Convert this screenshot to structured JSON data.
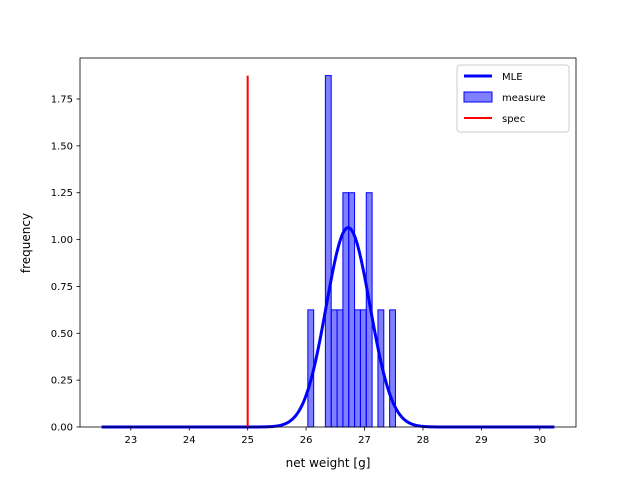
{
  "chart_data": {
    "type": "bar",
    "xlabel": "net weight [g]",
    "ylabel": "frequency",
    "xlim": [
      22.13,
      30.62
    ],
    "ylim": [
      0,
      1.96875
    ],
    "xticks": [
      {
        "value": 23,
        "label": "23"
      },
      {
        "value": 24,
        "label": "24"
      },
      {
        "value": 25,
        "label": "25"
      },
      {
        "value": 26,
        "label": "26"
      },
      {
        "value": 27,
        "label": "27"
      },
      {
        "value": 28,
        "label": "28"
      },
      {
        "value": 29,
        "label": "29"
      },
      {
        "value": 30,
        "label": "30"
      }
    ],
    "yticks": [
      {
        "value": 0.0,
        "label": "0.00"
      },
      {
        "value": 0.25,
        "label": "0.25"
      },
      {
        "value": 0.5,
        "label": "0.50"
      },
      {
        "value": 0.75,
        "label": "0.75"
      },
      {
        "value": 1.0,
        "label": "1.00"
      },
      {
        "value": 1.25,
        "label": "1.25"
      },
      {
        "value": 1.5,
        "label": "1.50"
      },
      {
        "value": 1.75,
        "label": "1.75"
      }
    ],
    "histogram": {
      "name": "measure",
      "color": "#0000ff",
      "bins": [
        {
          "x0": 26.03,
          "x1": 26.13,
          "value": 0.625
        },
        {
          "x0": 26.13,
          "x1": 26.23,
          "value": 0.0
        },
        {
          "x0": 26.23,
          "x1": 26.33,
          "value": 0.0
        },
        {
          "x0": 26.33,
          "x1": 26.43,
          "value": 1.875
        },
        {
          "x0": 26.43,
          "x1": 26.53,
          "value": 0.625
        },
        {
          "x0": 26.53,
          "x1": 26.63,
          "value": 0.625
        },
        {
          "x0": 26.63,
          "x1": 26.73,
          "value": 1.25
        },
        {
          "x0": 26.73,
          "x1": 26.83,
          "value": 1.25
        },
        {
          "x0": 26.83,
          "x1": 26.93,
          "value": 0.625
        },
        {
          "x0": 26.93,
          "x1": 27.03,
          "value": 0.625
        },
        {
          "x0": 27.03,
          "x1": 27.13,
          "value": 1.25
        },
        {
          "x0": 27.13,
          "x1": 27.23,
          "value": 0.0
        },
        {
          "x0": 27.23,
          "x1": 27.33,
          "value": 0.625
        },
        {
          "x0": 27.33,
          "x1": 27.43,
          "value": 0.0
        },
        {
          "x0": 27.43,
          "x1": 27.53,
          "value": 0.625
        }
      ]
    },
    "mle_curve": {
      "name": "MLE",
      "color": "#0000ff",
      "distribution": "normal",
      "mean": 26.72,
      "std": 0.375,
      "x_range": [
        22.5,
        30.25
      ]
    },
    "spec_line": {
      "name": "spec",
      "color": "#ff0000",
      "x": 25.0,
      "y_range": [
        0,
        1.875
      ]
    },
    "legend": {
      "placement": "top-right",
      "entries": [
        {
          "label": "MLE",
          "kind": "line",
          "color": "#0000ff"
        },
        {
          "label": "measure",
          "kind": "patch",
          "color": "#0000ff"
        },
        {
          "label": "spec",
          "kind": "line",
          "color": "#ff0000"
        }
      ]
    }
  }
}
